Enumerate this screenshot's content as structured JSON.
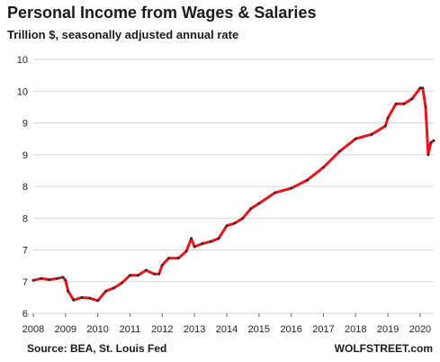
{
  "chart_data": {
    "type": "line",
    "title": "Personal Income from Wages & Salaries",
    "subtitle": "Trillion $, seasonally adjusted annual rate",
    "xlabel": "",
    "ylabel": "",
    "xlim": [
      2008.0,
      2020.42
    ],
    "ylim": [
      6.0,
      10.0
    ],
    "x_ticks": [
      2008,
      2009,
      2010,
      2011,
      2012,
      2013,
      2014,
      2015,
      2016,
      2017,
      2018,
      2019,
      2020
    ],
    "x_tick_labels": [
      "2008",
      "2009",
      "2010",
      "2011",
      "2012",
      "2013",
      "2014",
      "2015",
      "2016",
      "2017",
      "2018",
      "2019",
      "2020"
    ],
    "y_ticks": [
      6.0,
      6.5,
      7.0,
      7.5,
      8.0,
      8.5,
      9.0,
      9.5,
      10.0
    ],
    "y_tick_labels": [
      "6",
      "7",
      "7",
      "8",
      "8",
      "9",
      "9",
      "10",
      "10"
    ],
    "grid": true,
    "legend": "none",
    "series": [
      {
        "x": [
          2008.0,
          2008.25,
          2008.5,
          2008.75,
          2008.92,
          2009.0,
          2009.08,
          2009.25,
          2009.5,
          2009.75,
          2010.0,
          2010.25,
          2010.5,
          2010.75,
          2011.0,
          2011.25,
          2011.5,
          2011.75,
          2011.9,
          2012.0,
          2012.2,
          2012.5,
          2012.75,
          2012.9,
          2013.0,
          2013.25,
          2013.5,
          2013.75,
          2014.0,
          2014.25,
          2014.5,
          2014.75,
          2015.0,
          2015.5,
          2016.0,
          2016.5,
          2017.0,
          2017.5,
          2018.0,
          2018.5,
          2018.92,
          2019.0,
          2019.25,
          2019.5,
          2019.75,
          2020.0,
          2020.08,
          2020.17,
          2020.25,
          2020.33,
          2020.42
        ],
        "values": [
          6.52,
          6.55,
          6.53,
          6.55,
          6.57,
          6.52,
          6.35,
          6.21,
          6.25,
          6.24,
          6.2,
          6.35,
          6.4,
          6.48,
          6.6,
          6.6,
          6.68,
          6.62,
          6.62,
          6.76,
          6.87,
          6.87,
          6.98,
          7.18,
          7.05,
          7.1,
          7.13,
          7.18,
          7.38,
          7.42,
          7.5,
          7.65,
          7.73,
          7.9,
          7.97,
          8.1,
          8.3,
          8.55,
          8.75,
          8.82,
          8.95,
          9.08,
          9.3,
          9.3,
          9.38,
          9.55,
          9.55,
          9.25,
          8.5,
          8.69,
          8.72
        ]
      }
    ]
  },
  "footer": {
    "source": "Source: BEA, St. Louis Fed",
    "brand": "WOLFSTREET.com"
  },
  "colors": {
    "line": "#e8141b",
    "markers": "#2a2a2a",
    "grid": "#d9d9d9",
    "text": "#1a1a1a"
  }
}
